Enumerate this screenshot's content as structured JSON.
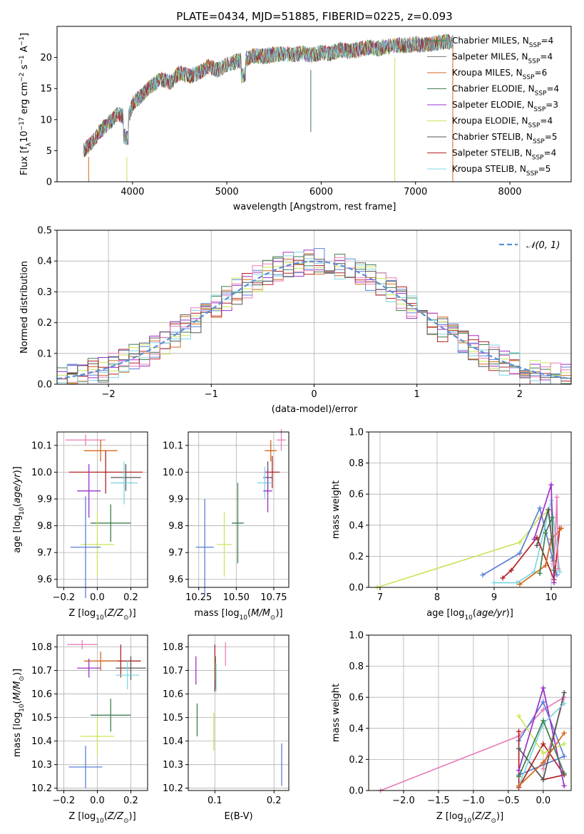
{
  "title": "PLATE=0434, MJD=51885, FIBERID=0225, z=0.093",
  "colors": {
    "chabrier_miles": "#2e8b57",
    "salpeter_miles": "#7f7f7f",
    "kroupa_miles": "#d2691e",
    "chabrier_elodie": "#3f7f4f",
    "salpeter_elodie": "#9b30c8",
    "kroupa_elodie": "#c8e65a",
    "chabrier_stelib": "#555555",
    "salpeter_stelib": "#b22222",
    "kroupa_stelib": "#7fd6e0",
    "normal_fit": "#5b8ed8",
    "pink": "#e87db8",
    "blue": "#5b7fd8"
  },
  "chart_data": [
    {
      "id": "spectrum",
      "type": "line",
      "title": "PLATE=0434, MJD=51885, FIBERID=0225, z=0.093",
      "xlabel": "wavelength [Angstrom, rest frame]",
      "ylabel": "Flux [f_λ 10^-17 erg cm^-2 s^-1 A^-1]",
      "xlim": [
        3200,
        8650
      ],
      "ylim": [
        0,
        25
      ],
      "xticks": [
        "4000",
        "5000",
        "6000",
        "7000",
        "8000"
      ],
      "yticks": [
        "0",
        "5",
        "10",
        "15",
        "20"
      ],
      "legend_position": "top-right",
      "x": [
        3480,
        3550,
        3650,
        3750,
        3850,
        3950,
        4000,
        4100,
        4200,
        4300,
        4400,
        4500,
        4600,
        4700,
        4800,
        4900,
        5000,
        5100,
        5200,
        5300,
        5400,
        5500,
        5600,
        5700,
        5800,
        5900,
        6000,
        6100,
        6200,
        6300,
        6400,
        6500,
        6600,
        6700,
        6800,
        6900,
        7000,
        7100,
        7200,
        7300,
        7400
      ],
      "y_envelope": [
        5.0,
        6.0,
        8.0,
        9.5,
        11.0,
        10.0,
        12.5,
        14.0,
        15.5,
        16.5,
        16.0,
        17.5,
        17.0,
        17.5,
        18.5,
        18.0,
        18.8,
        19.3,
        19.8,
        20.3,
        20.2,
        20.5,
        20.6,
        20.4,
        20.7,
        20.4,
        20.8,
        20.6,
        21.2,
        21.0,
        21.3,
        21.6,
        21.4,
        21.8,
        22.0,
        21.9,
        22.2,
        22.0,
        22.3,
        22.5,
        22.6
      ],
      "series": [
        {
          "name": "Chabrier MILES, N_SSP=4"
        },
        {
          "name": "Salpeter MILES, N_SSP=4"
        },
        {
          "name": "Kroupa MILES, N_SSP=6"
        },
        {
          "name": "Chabrier ELODIE, N_SSP=4"
        },
        {
          "name": "Salpeter ELODIE, N_SSP=3"
        },
        {
          "name": "Kroupa ELODIE, N_SSP=4"
        },
        {
          "name": "Chabrier STELIB, N_SSP=5"
        },
        {
          "name": "Salpeter STELIB, N_SSP=4"
        },
        {
          "name": "Kroupa STELIB, N_SSP=5"
        }
      ]
    },
    {
      "id": "residuals",
      "type": "line",
      "xlabel": "(data-model)/error",
      "ylabel": "Normed distribution",
      "xlim": [
        -2.5,
        2.5
      ],
      "ylim": [
        0,
        0.5
      ],
      "xticks": [
        "−2",
        "−1",
        "0",
        "1",
        "2"
      ],
      "yticks": [
        "0.0",
        "0.1",
        "0.2",
        "0.3",
        "0.4",
        "0.5"
      ],
      "grid": true,
      "legend_position": "top-right",
      "legend": "𝒩(0, 1)",
      "bin_width": 0.1
    },
    {
      "id": "age_vs_Z",
      "type": "scatter",
      "xlabel": "Z [log10(Z/Z☉)]",
      "ylabel": "age  [log10(age/yr)]",
      "xlim": [
        -0.24,
        0.3
      ],
      "ylim": [
        9.57,
        10.15
      ],
      "xticks": [
        "−0.2",
        "0.0",
        "0.2"
      ],
      "yticks": [
        "9.6",
        "9.7",
        "9.8",
        "9.9",
        "10.0",
        "10.1"
      ],
      "grid": true,
      "points": [
        {
          "x": -0.07,
          "y": 10.12,
          "xerr": 0.12,
          "yerr": 0.02,
          "c": "pink"
        },
        {
          "x": 0.02,
          "y": 10.08,
          "xerr": 0.1,
          "yerr": 0.04,
          "c": "kroupa_miles"
        },
        {
          "x": 0.05,
          "y": 10.0,
          "xerr": 0.22,
          "yerr": 0.08,
          "c": "salpeter_stelib"
        },
        {
          "x": 0.17,
          "y": 9.98,
          "xerr": 0.09,
          "yerr": 0.05,
          "c": "chabrier_stelib"
        },
        {
          "x": 0.16,
          "y": 9.96,
          "xerr": 0.08,
          "yerr": 0.08,
          "c": "kroupa_stelib"
        },
        {
          "x": -0.05,
          "y": 9.93,
          "xerr": 0.07,
          "yerr": 0.1,
          "c": "salpeter_elodie"
        },
        {
          "x": 0.08,
          "y": 9.81,
          "xerr": 0.12,
          "yerr": 0.07,
          "c": "chabrier_elodie"
        },
        {
          "x": 0.0,
          "y": 9.73,
          "xerr": 0.1,
          "yerr": 0.12,
          "c": "kroupa_elodie"
        },
        {
          "x": -0.07,
          "y": 9.72,
          "xerr": 0.09,
          "yerr": 0.19,
          "c": "blue"
        }
      ]
    },
    {
      "id": "age_vs_mass",
      "type": "scatter",
      "xlabel": "mass [log10(M/M☉)]",
      "xlim": [
        10.18,
        10.85
      ],
      "ylim": [
        9.57,
        10.15
      ],
      "xticks": [
        "10.25",
        "10.50",
        "10.75"
      ],
      "yticks": [
        "9.6",
        "9.7",
        "9.8",
        "9.9",
        "10.0",
        "10.1"
      ],
      "grid": true,
      "points": [
        {
          "x": 10.8,
          "y": 10.12,
          "xerr": 0.03,
          "yerr": 0.04,
          "c": "pink"
        },
        {
          "x": 10.73,
          "y": 10.08,
          "xerr": 0.04,
          "yerr": 0.04,
          "c": "kroupa_miles"
        },
        {
          "x": 10.74,
          "y": 10.0,
          "xerr": 0.05,
          "yerr": 0.06,
          "c": "salpeter_stelib"
        },
        {
          "x": 10.71,
          "y": 9.98,
          "xerr": 0.03,
          "yerr": 0.06,
          "c": "chabrier_stelib"
        },
        {
          "x": 10.69,
          "y": 9.96,
          "xerr": 0.05,
          "yerr": 0.06,
          "c": "kroupa_stelib"
        },
        {
          "x": 10.71,
          "y": 9.93,
          "xerr": 0.03,
          "yerr": 0.08,
          "c": "salpeter_elodie"
        },
        {
          "x": 10.51,
          "y": 9.81,
          "xerr": 0.04,
          "yerr": 0.15,
          "c": "chabrier_elodie"
        },
        {
          "x": 10.42,
          "y": 9.73,
          "xerr": 0.05,
          "yerr": 0.12,
          "c": "kroupa_elodie"
        },
        {
          "x": 10.29,
          "y": 9.72,
          "xerr": 0.06,
          "yerr": 0.18,
          "c": "blue"
        }
      ]
    },
    {
      "id": "weight_vs_age",
      "type": "line",
      "xlabel": "age  [log10(age/yr)]",
      "ylabel": "mass weight",
      "xlim": [
        6.8,
        10.35
      ],
      "ylim": [
        0,
        1
      ],
      "xticks": [
        "7",
        "8",
        "9",
        "10"
      ],
      "yticks": [
        "0.0",
        "0.2",
        "0.4",
        "0.6",
        "0.8",
        "1.0"
      ],
      "grid": true,
      "series": [
        {
          "c": "kroupa_elodie",
          "x": [
            6.95,
            9.45,
            9.8,
            9.95
          ],
          "y": [
            0.0,
            0.29,
            0.45,
            0.49
          ]
        },
        {
          "c": "blue",
          "x": [
            8.8,
            9.45,
            9.8,
            10.02,
            10.1
          ],
          "y": [
            0.08,
            0.22,
            0.51,
            0.19,
            0.08
          ]
        },
        {
          "c": "kroupa_stelib",
          "x": [
            9.0,
            9.4,
            9.7,
            10.0,
            10.15
          ],
          "y": [
            0.03,
            0.03,
            0.1,
            0.56,
            0.1
          ]
        },
        {
          "c": "salpeter_stelib",
          "x": [
            9.15,
            9.3,
            9.75,
            10.05,
            10.15
          ],
          "y": [
            0.06,
            0.11,
            0.32,
            0.05,
            0.38
          ]
        },
        {
          "c": "kroupa_miles",
          "x": [
            9.45,
            9.9,
            10.0,
            10.18
          ],
          "y": [
            0.02,
            0.14,
            0.31,
            0.38
          ]
        },
        {
          "c": "salpeter_elodie",
          "x": [
            9.7,
            10.0,
            10.05
          ],
          "y": [
            0.31,
            0.66,
            0.03
          ]
        },
        {
          "c": "chabrier_stelib",
          "x": [
            9.75,
            9.95,
            10.05
          ],
          "y": [
            0.27,
            0.5,
            0.17
          ]
        },
        {
          "c": "chabrier_elodie",
          "x": [
            9.8,
            9.9,
            10.02,
            10.05
          ],
          "y": [
            0.09,
            0.35,
            0.45,
            0.11
          ]
        },
        {
          "c": "pink",
          "x": [
            10.05,
            10.1,
            10.12
          ],
          "y": [
            0.15,
            0.58,
            0.12
          ]
        }
      ]
    },
    {
      "id": "mass_vs_Z",
      "type": "scatter",
      "xlabel": "Z [log10(Z/Z☉)]",
      "ylabel": "mass [log10(M/M☉)]",
      "xlim": [
        -0.24,
        0.3
      ],
      "ylim": [
        10.19,
        10.85
      ],
      "xticks": [
        "−0.2",
        "0.0",
        "0.2"
      ],
      "yticks": [
        "10.2",
        "10.3",
        "10.4",
        "10.5",
        "10.6",
        "10.7",
        "10.8"
      ],
      "grid": true,
      "points": [
        {
          "x": -0.09,
          "y": 10.81,
          "xerr": 0.09,
          "yerr": 0.02,
          "c": "pink"
        },
        {
          "x": 0.14,
          "y": 10.74,
          "xerr": 0.12,
          "yerr": 0.07,
          "c": "salpeter_stelib"
        },
        {
          "x": 0.02,
          "y": 10.74,
          "xerr": 0.1,
          "yerr": 0.04,
          "c": "kroupa_miles"
        },
        {
          "x": 0.2,
          "y": 10.71,
          "xerr": 0.09,
          "yerr": 0.05,
          "c": "chabrier_stelib"
        },
        {
          "x": -0.05,
          "y": 10.71,
          "xerr": 0.07,
          "yerr": 0.04,
          "c": "salpeter_elodie"
        },
        {
          "x": 0.18,
          "y": 10.68,
          "xerr": 0.07,
          "yerr": 0.06,
          "c": "kroupa_stelib"
        },
        {
          "x": 0.08,
          "y": 10.51,
          "xerr": 0.12,
          "yerr": 0.07,
          "c": "chabrier_elodie"
        },
        {
          "x": 0.0,
          "y": 10.42,
          "xerr": 0.1,
          "yerr": 0.08,
          "c": "kroupa_elodie"
        },
        {
          "x": -0.07,
          "y": 10.29,
          "xerr": 0.1,
          "yerr": 0.09,
          "c": "blue"
        }
      ]
    },
    {
      "id": "mass_vs_ebv",
      "type": "scatter",
      "xlabel": "E(B-V)",
      "xlim": [
        0.055,
        0.225
      ],
      "ylim": [
        10.19,
        10.85
      ],
      "xticks": [
        "0.1",
        "0.2"
      ],
      "yticks": [
        "10.2",
        "10.3",
        "10.4",
        "10.5",
        "10.6",
        "10.7",
        "10.8"
      ],
      "grid": true,
      "points": [
        {
          "x": 0.118,
          "y": 10.77,
          "xerr": 0.0,
          "yerr": 0.05,
          "c": "pink"
        },
        {
          "x": 0.1,
          "y": 10.71,
          "xerr": 0.0,
          "yerr": 0.1,
          "c": "salpeter_stelib"
        },
        {
          "x": 0.1,
          "y": 10.71,
          "xerr": 0.0,
          "yerr": 0.05,
          "c": "kroupa_miles"
        },
        {
          "x": 0.101,
          "y": 10.69,
          "xerr": 0.0,
          "yerr": 0.07,
          "c": "chabrier_stelib"
        },
        {
          "x": 0.068,
          "y": 10.7,
          "xerr": 0.0,
          "yerr": 0.06,
          "c": "salpeter_elodie"
        },
        {
          "x": 0.102,
          "y": 10.67,
          "xerr": 0.0,
          "yerr": 0.06,
          "c": "kroupa_stelib"
        },
        {
          "x": 0.07,
          "y": 10.49,
          "xerr": 0.0,
          "yerr": 0.07,
          "c": "chabrier_elodie"
        },
        {
          "x": 0.098,
          "y": 10.44,
          "xerr": 0.0,
          "yerr": 0.08,
          "c": "kroupa_elodie"
        },
        {
          "x": 0.213,
          "y": 10.3,
          "xerr": 0.0,
          "yerr": 0.09,
          "c": "blue"
        }
      ]
    },
    {
      "id": "weight_vs_Z",
      "type": "line",
      "xlabel": "Z [log10(Z/Z☉)]",
      "ylabel": "mass weight",
      "xlim": [
        -2.5,
        0.4
      ],
      "ylim": [
        0,
        1
      ],
      "xticks": [
        "−2.0",
        "−1.5",
        "−1.0",
        "−0.5",
        "0.0"
      ],
      "yticks": [
        "0.0",
        "0.2",
        "0.4",
        "0.6",
        "0.8",
        "1.0"
      ],
      "grid": true,
      "series": [
        {
          "c": "pink",
          "x": [
            -2.33,
            -0.35,
            0.0,
            0.3,
            0.0
          ],
          "y": [
            0.0,
            0.35,
            0.52,
            0.6,
            0.14
          ]
        },
        {
          "c": "blue",
          "x": [
            -0.35,
            0.0,
            0.3,
            -0.35
          ],
          "y": [
            0.32,
            0.57,
            0.22,
            0.1
          ]
        },
        {
          "c": "salpeter_stelib",
          "x": [
            -0.35,
            -0.35,
            0.0,
            0.3,
            0.0
          ],
          "y": [
            0.38,
            0.02,
            0.3,
            0.1,
            0.07
          ]
        },
        {
          "c": "kroupa_elodie",
          "x": [
            -0.35,
            0.0,
            0.3
          ],
          "y": [
            0.48,
            0.24,
            0.3
          ]
        },
        {
          "c": "salpeter_elodie",
          "x": [
            -0.35,
            0.0,
            0.3
          ],
          "y": [
            0.13,
            0.66,
            0.03
          ]
        },
        {
          "c": "chabrier_stelib",
          "x": [
            -0.35,
            0.0,
            0.3
          ],
          "y": [
            0.27,
            0.07,
            0.63
          ]
        },
        {
          "c": "kroupa_stelib",
          "x": [
            -0.35,
            0.0,
            0.3
          ],
          "y": [
            0.03,
            0.43,
            0.56
          ]
        },
        {
          "c": "kroupa_miles",
          "x": [
            -0.35,
            0.0,
            0.3
          ],
          "y": [
            0.03,
            0.18,
            0.37
          ]
        },
        {
          "c": "chabrier_elodie",
          "x": [
            -0.35,
            0.0,
            0.3
          ],
          "y": [
            0.09,
            0.45,
            0.11
          ]
        }
      ]
    }
  ]
}
